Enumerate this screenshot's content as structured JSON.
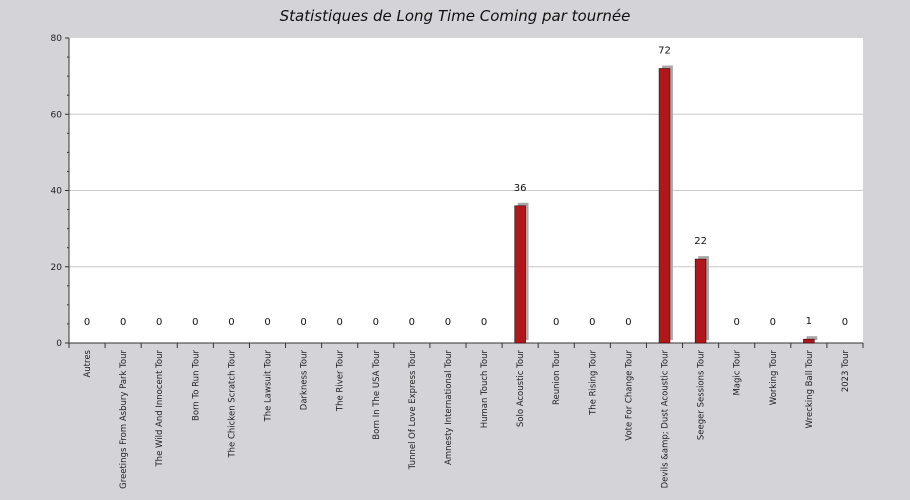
{
  "chart_data": {
    "type": "bar",
    "title": "Statistiques de Long Time Coming par tournée",
    "xlabel": "",
    "ylabel": "",
    "ylim": [
      0,
      80
    ],
    "yticks": [
      0,
      20,
      40,
      60,
      80
    ],
    "grid": true,
    "categories": [
      "Autres",
      "Greetings From Asbury Park Tour",
      "The Wild And Innocent Tour",
      "Born To Run Tour",
      "The Chicken Scratch Tour",
      "The Lawsuit Tour",
      "Darkness Tour",
      "The River Tour",
      "Born In The USA Tour",
      "Tunnel Of Love Express Tour",
      "Amnesty International Tour",
      "Human Touch Tour",
      "Solo Acoustic Tour",
      "Reunion Tour",
      "The Rising Tour",
      "Vote For Change Tour",
      "Devils &amp; Dust Acoustic Tour",
      "Seeger Sessions Tour",
      "Magic Tour",
      "Working Tour",
      "Wrecking Ball Tour",
      "2023 Tour"
    ],
    "values": [
      0,
      0,
      0,
      0,
      0,
      0,
      0,
      0,
      0,
      0,
      0,
      0,
      36,
      0,
      0,
      0,
      72,
      22,
      0,
      0,
      1,
      0
    ],
    "colors": {
      "background": "#d4d3d8",
      "plot": "#ffffff",
      "bar": "#b0161a",
      "bar_shadow": "#a8a8a8",
      "grid": "#c8c8c8"
    }
  }
}
